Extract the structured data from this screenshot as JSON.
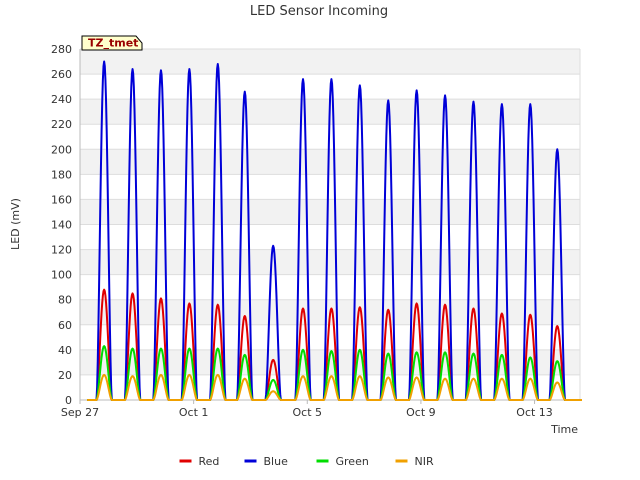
{
  "chart_data": {
    "type": "line",
    "title": "LED Sensor Incoming",
    "xlabel": "Time",
    "ylabel": "LED (mV)",
    "site_tag": "TZ_tmet",
    "ylim": [
      0,
      280
    ],
    "xlim_days": [
      0,
      17.6
    ],
    "y_ticks": [
      0,
      20,
      40,
      60,
      80,
      100,
      120,
      140,
      160,
      180,
      200,
      220,
      240,
      260,
      280
    ],
    "x_ticks": [
      {
        "day": 0,
        "label": "Sep 27"
      },
      {
        "day": 4,
        "label": "Oct 1"
      },
      {
        "day": 8,
        "label": "Oct 5"
      },
      {
        "day": 12,
        "label": "Oct 9"
      },
      {
        "day": 16,
        "label": "Oct 13"
      }
    ],
    "grid": true,
    "legend_position": "bottom-center",
    "series": [
      {
        "name": "Red",
        "color": "#e00000",
        "values": [
          88,
          85,
          81,
          77,
          76,
          67,
          32,
          73,
          73,
          74,
          72,
          77,
          76,
          73,
          69,
          68,
          59
        ]
      },
      {
        "name": "Blue",
        "color": "#0000d8",
        "values": [
          270,
          264,
          263,
          264,
          268,
          246,
          123,
          256,
          256,
          251,
          239,
          247,
          243,
          238,
          236,
          236,
          200
        ]
      },
      {
        "name": "Green",
        "color": "#00dd00",
        "values": [
          43,
          41,
          41,
          41,
          41,
          36,
          16,
          40,
          39,
          40,
          37,
          38,
          38,
          37,
          36,
          34,
          31
        ]
      },
      {
        "name": "NIR",
        "color": "#f0a000",
        "values": [
          20,
          19,
          20,
          20,
          20,
          17,
          7,
          19,
          19,
          19,
          18,
          18,
          17,
          17,
          17,
          17,
          14
        ]
      }
    ],
    "peak_days": [
      0.85,
      1.85,
      2.85,
      3.85,
      4.85,
      5.8,
      6.8,
      7.85,
      8.85,
      9.85,
      10.85,
      11.85,
      12.85,
      13.85,
      14.85,
      15.85,
      16.8
    ]
  }
}
